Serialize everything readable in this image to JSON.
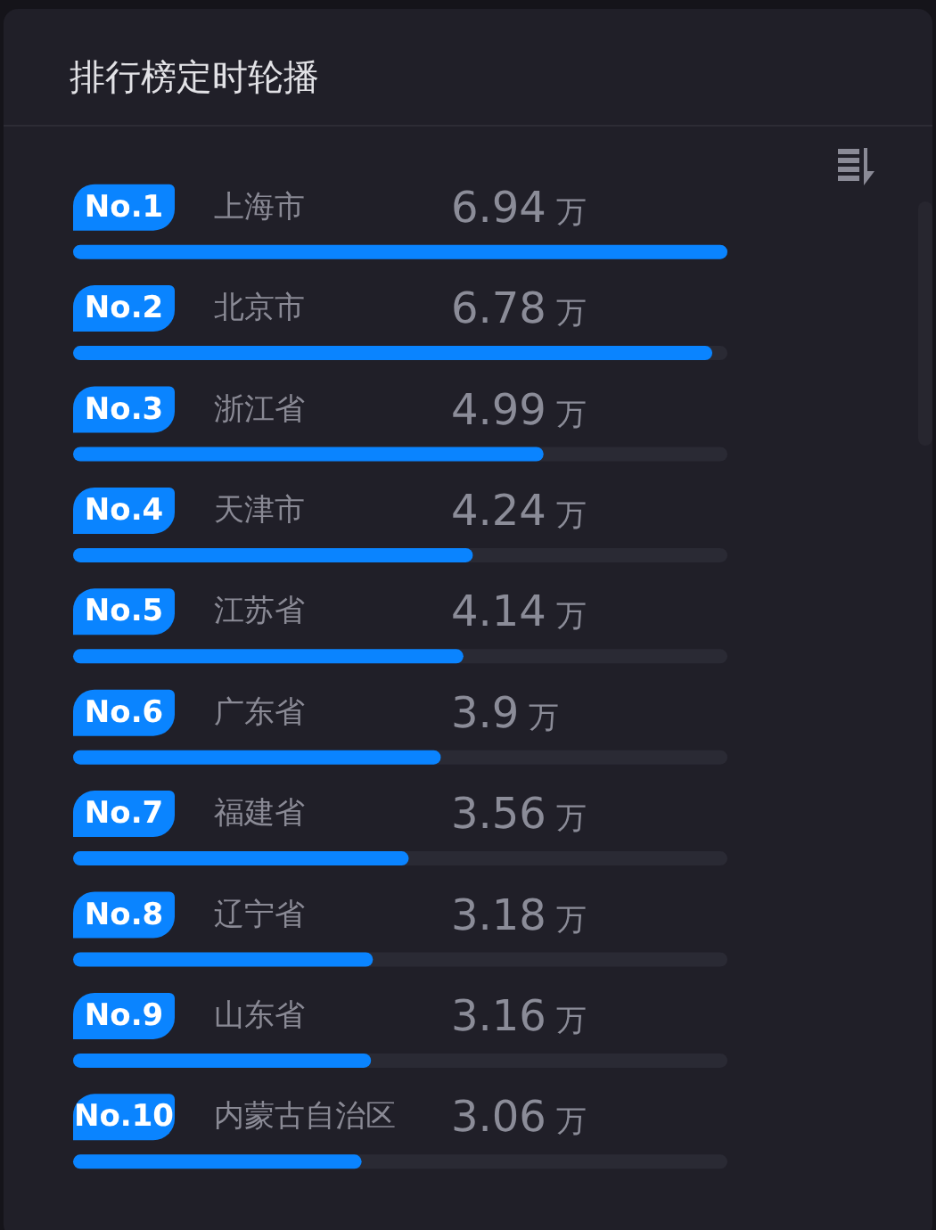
{
  "chart_data": {
    "type": "bar",
    "orientation": "horizontal",
    "title": "排行榜定时轮播",
    "categories": [
      "上海市",
      "北京市",
      "浙江省",
      "天津市",
      "江苏省",
      "广东省",
      "福建省",
      "辽宁省",
      "山东省",
      "内蒙古自治区"
    ],
    "values": [
      6.94,
      6.78,
      4.99,
      4.24,
      4.14,
      3.9,
      3.56,
      3.18,
      3.16,
      3.06
    ],
    "value_labels": [
      "6.94 万",
      "6.78 万",
      "4.99 万",
      "4.24 万",
      "4.14 万",
      "3.9 万",
      "3.56 万",
      "3.18 万",
      "3.16 万",
      "3.06 万"
    ],
    "color": "#0a84ff",
    "annotations": [
      "No.1",
      "No.2",
      "No.3",
      "No.4",
      "No.5",
      "No.6",
      "No.7",
      "No.8",
      "No.9",
      "No.10"
    ],
    "tick_labels": "y"
  }
}
